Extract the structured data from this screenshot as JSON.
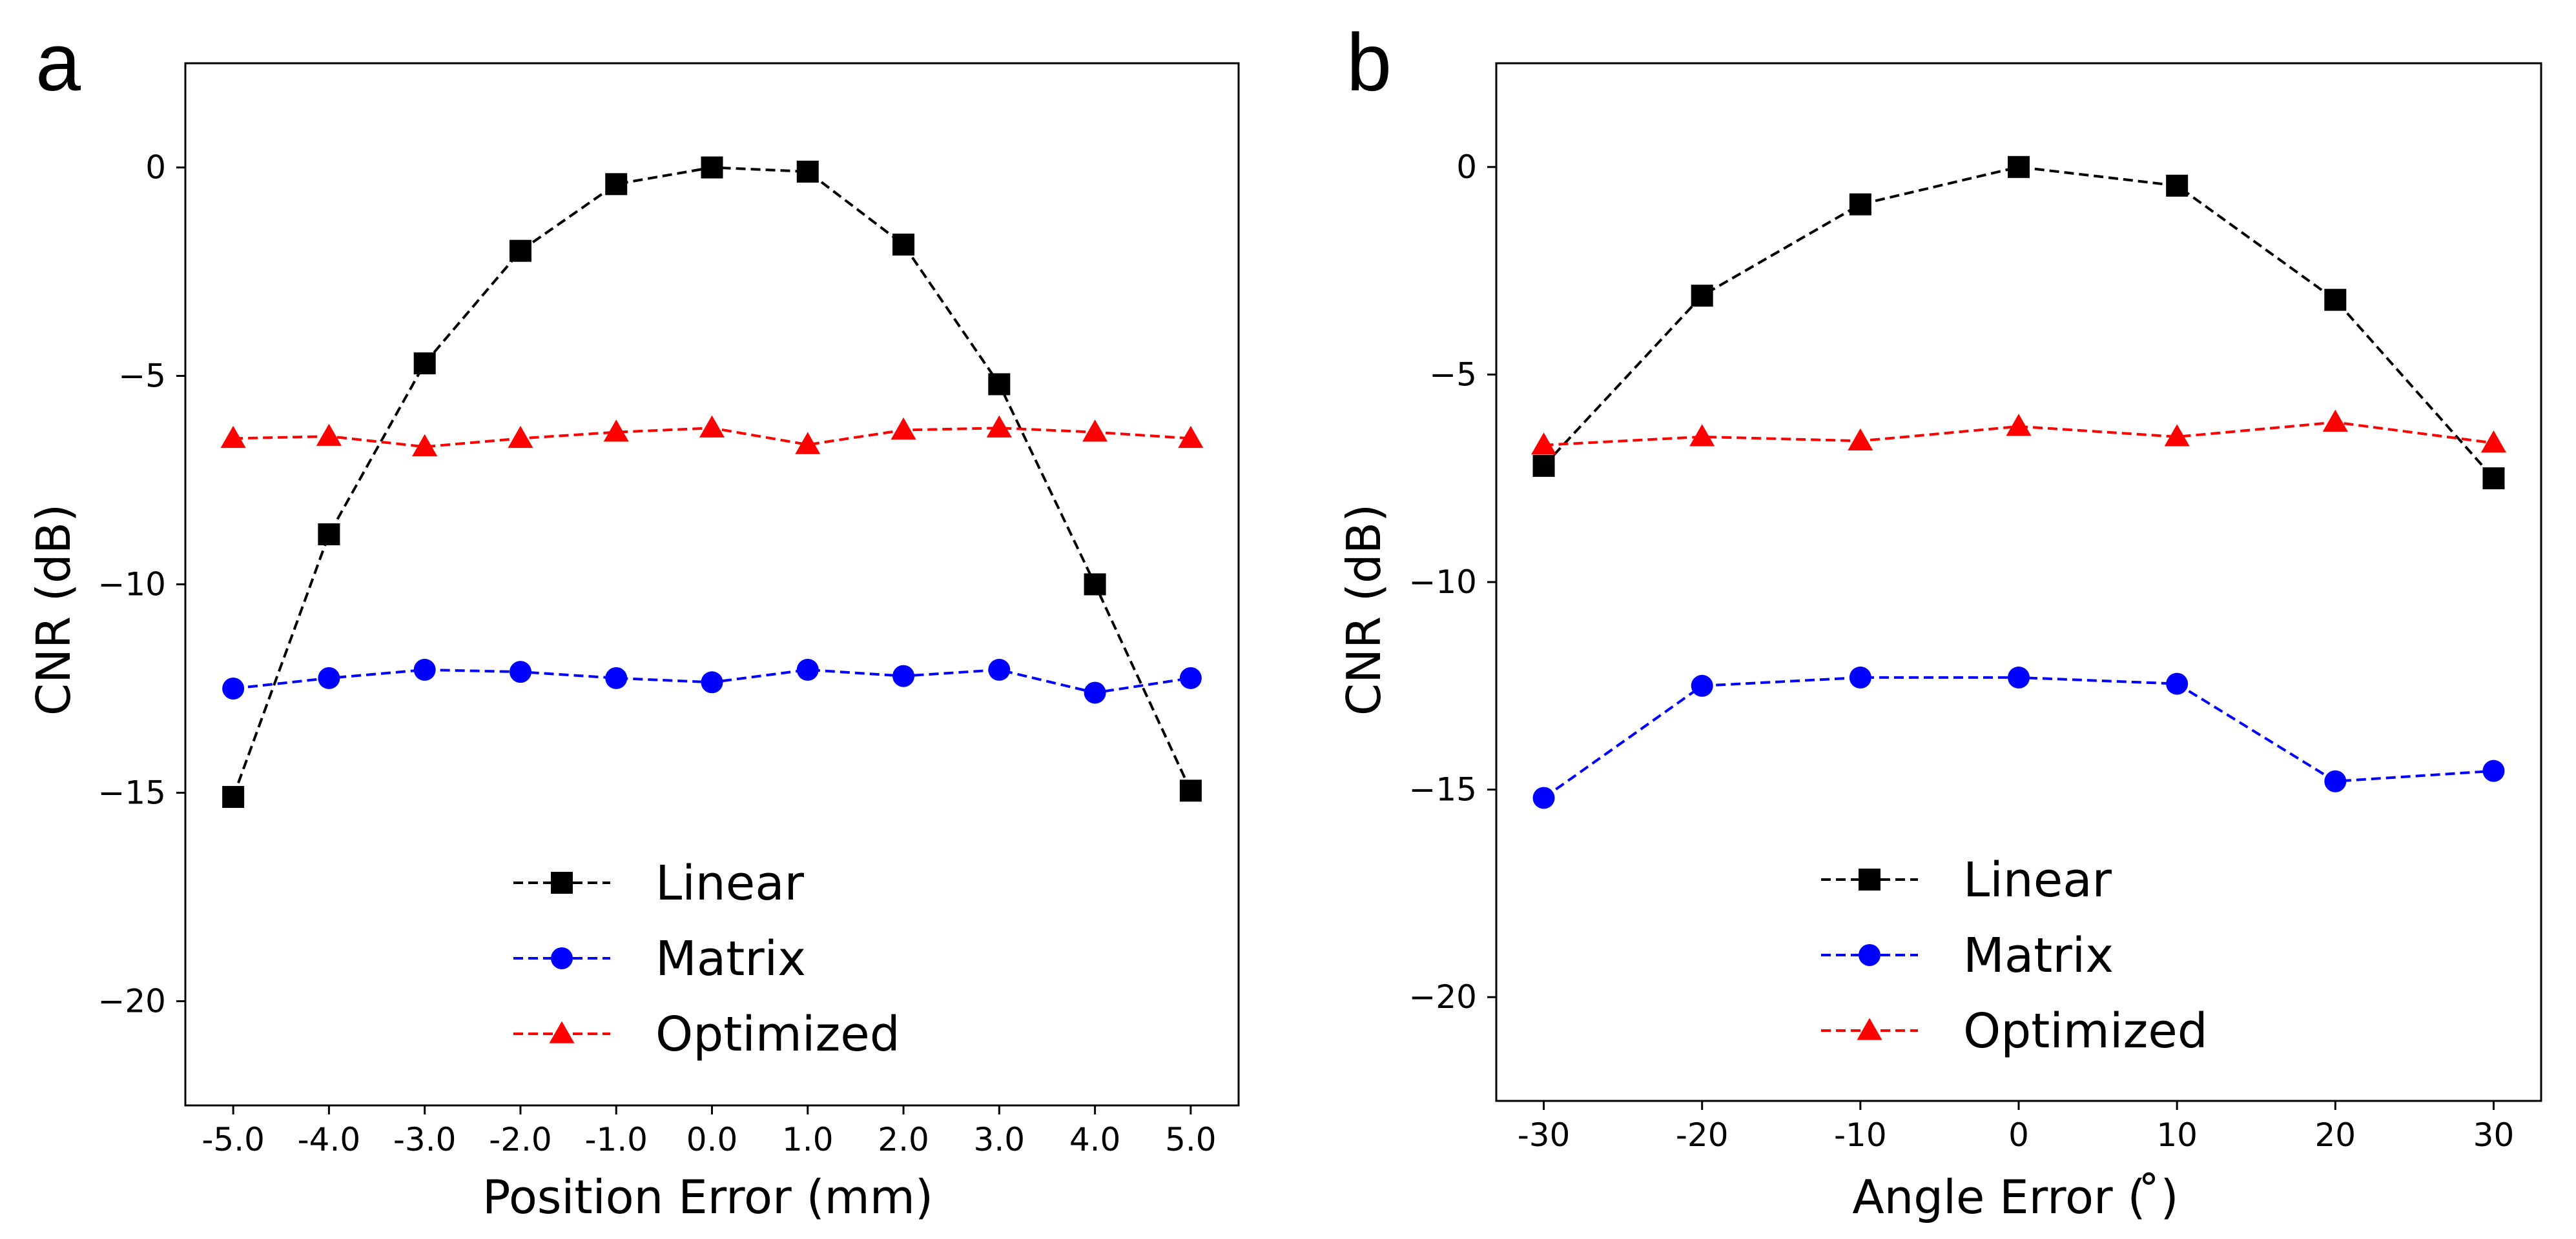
{
  "chart_data": [
    {
      "panel_label": "a",
      "type": "line",
      "xlabel": "Position Error (mm)",
      "ylabel": "CNR (dB)",
      "categories": [
        "-5.0",
        "-4.0",
        "-3.0",
        "-2.0",
        "-1.0",
        "0.0",
        "1.0",
        "2.0",
        "3.0",
        "4.0",
        "5.0"
      ],
      "x": [
        -5,
        -4,
        -3,
        -2,
        -1,
        0,
        1,
        2,
        3,
        4,
        5
      ],
      "xlim": [
        -5.5,
        5.5
      ],
      "ylim": [
        -22.5,
        2.5
      ],
      "yticks": [
        0,
        -5,
        -10,
        -15,
        -20
      ],
      "ytick_labels": [
        "0",
        "−5",
        "−10",
        "−15",
        "−20"
      ],
      "legend_position": "lower center",
      "series": [
        {
          "name": "Linear",
          "color": "#000000",
          "marker": "square",
          "values": [
            -15.1,
            -8.8,
            -4.7,
            -2.0,
            -0.4,
            0.0,
            -0.1,
            -1.85,
            -5.2,
            -10.0,
            -14.95
          ]
        },
        {
          "name": "Matrix",
          "color": "#0000ff",
          "marker": "circle",
          "values": [
            -12.5,
            -12.25,
            -12.05,
            -12.1,
            -12.25,
            -12.35,
            -12.05,
            -12.2,
            -12.05,
            -12.6,
            -12.25
          ]
        },
        {
          "name": "Optimized",
          "color": "#ff0000",
          "marker": "triangle",
          "values": [
            -6.5,
            -6.45,
            -6.7,
            -6.5,
            -6.35,
            -6.25,
            -6.65,
            -6.3,
            -6.25,
            -6.35,
            -6.5
          ]
        }
      ]
    },
    {
      "panel_label": "b",
      "type": "line",
      "xlabel": "Angle Error ( ̊)",
      "ylabel": "CNR (dB)",
      "categories": [
        "-30",
        "-20",
        "-10",
        "0",
        "10",
        "20",
        "30"
      ],
      "x": [
        -30,
        -20,
        -10,
        0,
        10,
        20,
        30
      ],
      "xlim": [
        -33,
        33
      ],
      "ylim": [
        -22.5,
        2.5
      ],
      "yticks": [
        0,
        -5,
        -10,
        -15,
        -20
      ],
      "ytick_labels": [
        "0",
        "−5",
        "−10",
        "−15",
        "−20"
      ],
      "legend_position": "lower center",
      "series": [
        {
          "name": "Linear",
          "color": "#000000",
          "marker": "square",
          "values": [
            -7.2,
            -3.1,
            -0.9,
            0.0,
            -0.45,
            -3.2,
            -7.5
          ]
        },
        {
          "name": "Matrix",
          "color": "#0000ff",
          "marker": "circle",
          "values": [
            -15.2,
            -12.5,
            -12.3,
            -12.3,
            -12.45,
            -14.8,
            -14.55
          ]
        },
        {
          "name": "Optimized",
          "color": "#ff0000",
          "marker": "triangle",
          "values": [
            -6.7,
            -6.5,
            -6.6,
            -6.25,
            -6.5,
            -6.15,
            -6.65
          ]
        }
      ]
    }
  ]
}
